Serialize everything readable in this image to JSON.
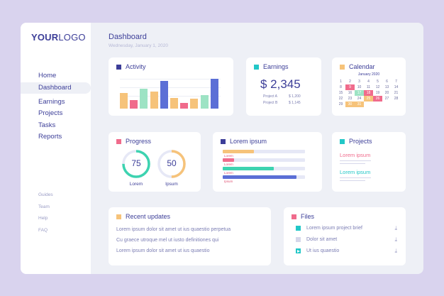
{
  "logo": {
    "bold": "YOUR",
    "light": "LOGO"
  },
  "nav": {
    "items": [
      "Home",
      "Dashboard",
      "Earnings",
      "Projects",
      "Tasks",
      "Reports"
    ],
    "small": [
      "Guides",
      "Team",
      "Help",
      "FAQ"
    ]
  },
  "header": {
    "title": "Dashboard",
    "date": "Wednesday, January 1, 2020"
  },
  "activity": {
    "title": "Activity",
    "accent": "#3c3e98",
    "bars": [
      {
        "value": 0.55,
        "color": "#f6c37a"
      },
      {
        "value": 0.3,
        "color": "#f06b8c"
      },
      {
        "value": 0.72,
        "color": "#9de3c4"
      },
      {
        "value": 0.62,
        "color": "#f6c37a"
      },
      {
        "value": 1.0,
        "color": "#5b6fd6"
      },
      {
        "value": 0.38,
        "color": "#f6c37a"
      },
      {
        "value": 0.2,
        "color": "#f06b8c"
      },
      {
        "value": 0.35,
        "color": "#f6c37a"
      },
      {
        "value": 0.48,
        "color": "#9de3c4"
      },
      {
        "value": 1.08,
        "color": "#5b6fd6"
      }
    ]
  },
  "earnings": {
    "title": "Earnings",
    "accent": "#22c7c7",
    "total": "$ 2,345",
    "rows": [
      {
        "label": "Project A",
        "value": "$ 1,200"
      },
      {
        "label": "Project B",
        "value": "$ 1,145"
      }
    ]
  },
  "calendar": {
    "title": "Calendar",
    "accent": "#f6c37a",
    "month": "January 2020",
    "weeks": [
      [
        "1",
        "2",
        "3",
        "4",
        "5",
        "6",
        "7"
      ],
      [
        "8",
        "9",
        "10",
        "11",
        "12",
        "13",
        "14"
      ],
      [
        "15",
        "16",
        "17",
        "18",
        "19",
        "20",
        "21"
      ],
      [
        "22",
        "23",
        "24",
        "25",
        "26",
        "27",
        "28"
      ],
      [
        "29",
        "30",
        "31",
        "",
        "",
        "",
        ""
      ]
    ]
  },
  "progress": {
    "title": "Progress",
    "accent": "#f06b8c",
    "rings": [
      {
        "value": "75",
        "label": "Lorem",
        "fraction": 0.75,
        "color": "#3dd3b0"
      },
      {
        "value": "50",
        "label": "Ipsum",
        "fraction": 0.5,
        "color": "#f6c37a"
      }
    ]
  },
  "lorem": {
    "title": "Lorem ipsum",
    "accent": "#3c3e98",
    "bars": [
      {
        "label": "Lorem",
        "fraction": 0.38,
        "color": "#f6c37a"
      },
      {
        "label": "Lorem",
        "fraction": 0.14,
        "color": "#f06b8c"
      },
      {
        "label": "Lorem",
        "fraction": 0.62,
        "color": "#3dd3b0"
      },
      {
        "label": "Ipsum",
        "fraction": 0.9,
        "color": "#5b6fd6"
      }
    ]
  },
  "projects": {
    "title": "Projects",
    "accent": "#22c7c7",
    "items": [
      {
        "label": "Lorem ipsum",
        "color": "#f06b8c"
      },
      {
        "label": "Lorem ipsum",
        "color": "#22c7c7"
      }
    ]
  },
  "updates": {
    "title": "Recent updates",
    "accent": "#f6c37a",
    "items": [
      "Lorem ipsum dolor sit amet ut ius quaestio perpetua",
      "Cu graece utroque mel ut iusto definitiones qui",
      "Lorem ipsum dolor sit amet ut ius quaestio"
    ]
  },
  "files": {
    "title": "Files",
    "accent": "#f06b8c",
    "items": [
      {
        "name": "Lorem ipsum project brief",
        "color": "#22c7c7",
        "icon": "document-icon"
      },
      {
        "name": "Dolor sit amet",
        "color": "#d6d7ea",
        "icon": "file-icon"
      },
      {
        "name": "Ut ius quaestio",
        "color": "#22c7c7",
        "icon": "video-icon"
      }
    ]
  }
}
